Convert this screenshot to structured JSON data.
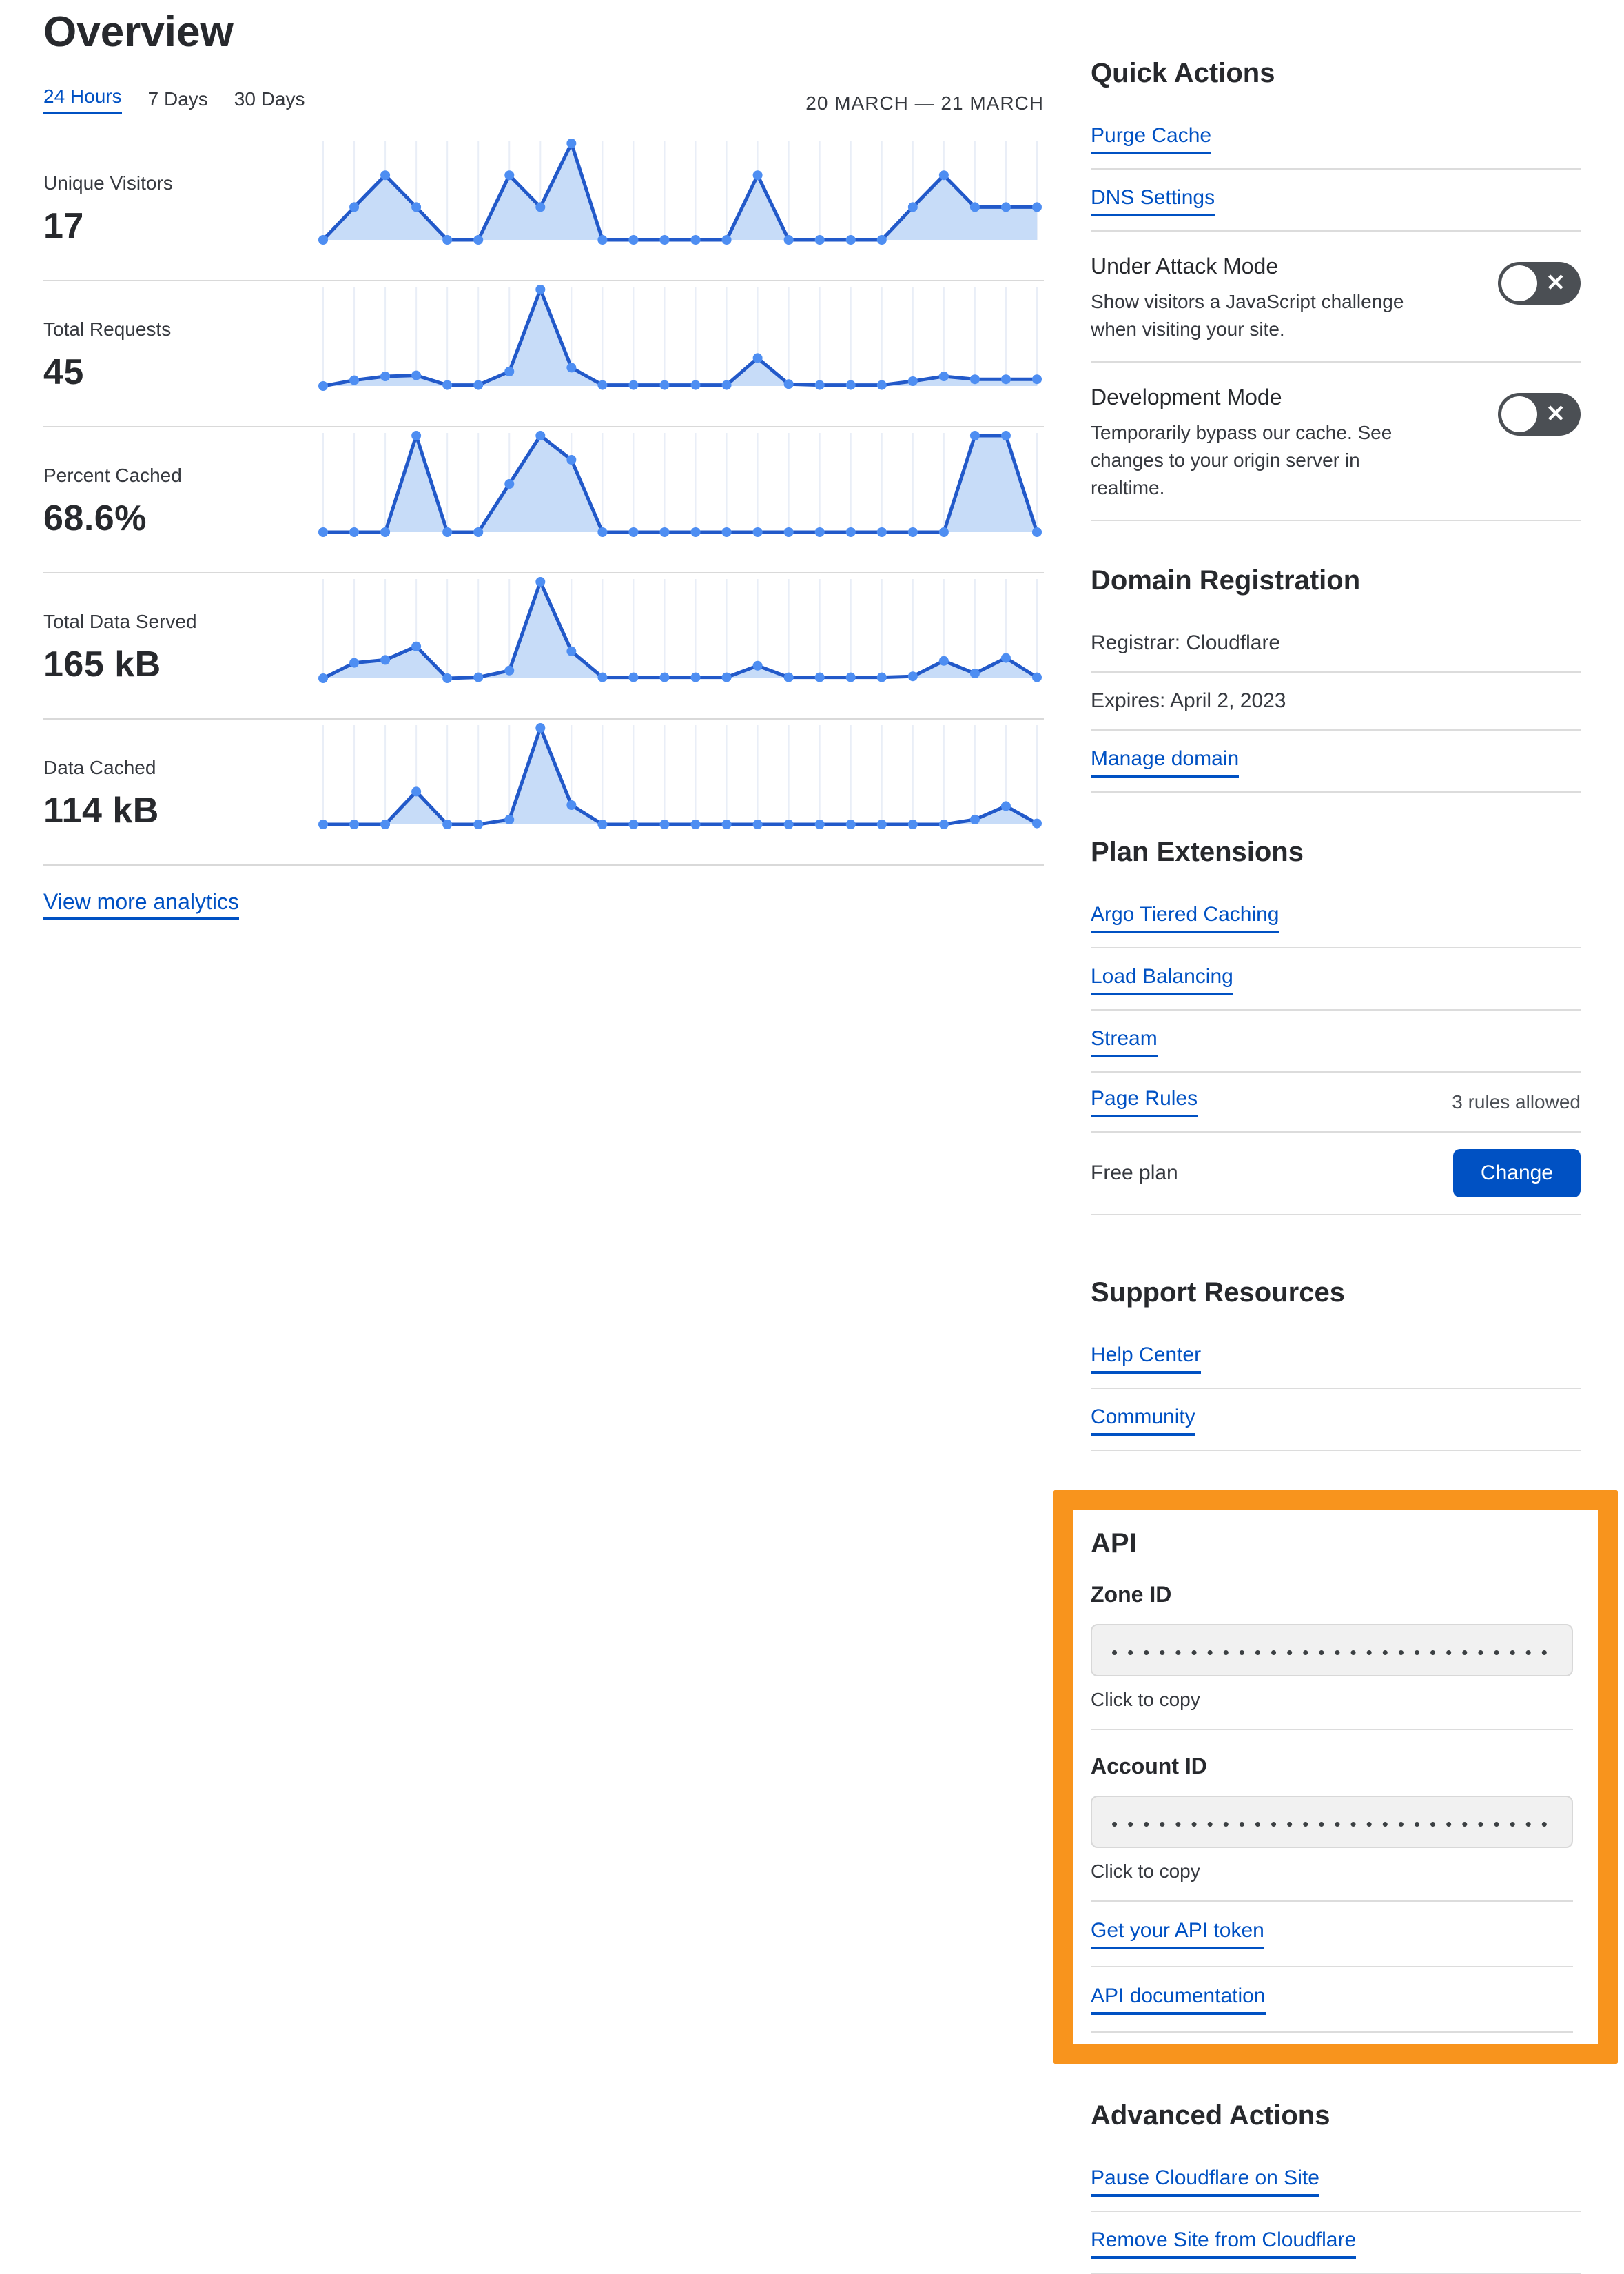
{
  "colors": {
    "link_blue": "#0051c3",
    "button_blue": "#0051c3",
    "accent_orange": "#f8941d",
    "chart_line": "#2259c9",
    "chart_dot": "#4e8ef2",
    "chart_fill": "#c7dcf8",
    "chart_grid": "#e9eef7",
    "toggle_bg": "#4b4f54",
    "divider": "#d9d9d9"
  },
  "header": {
    "title": "Overview",
    "tabs": [
      {
        "label": "24 Hours",
        "active": true
      },
      {
        "label": "7 Days",
        "active": false
      },
      {
        "label": "30 Days",
        "active": false
      }
    ],
    "date_range": "20 MARCH — 21 MARCH"
  },
  "chart_data": [
    {
      "type": "area",
      "title": "Unique Visitors",
      "total": "17",
      "x_count": 24,
      "x_meaning": "points across the 24 Hours range (no tick labels shown)",
      "ylim": [
        0,
        10
      ],
      "yunit": "relative (no y-axis shown)",
      "grid": "vertical gridlines only",
      "legend": "none",
      "values": [
        0,
        3.4,
        6.7,
        3.4,
        0,
        0,
        6.7,
        3.4,
        10,
        0,
        0,
        0,
        0,
        0,
        6.7,
        0,
        0,
        0,
        0,
        3.4,
        6.7,
        3.4,
        3.4,
        3.4
      ]
    },
    {
      "type": "area",
      "title": "Total Requests",
      "total": "45",
      "x_count": 24,
      "x_meaning": "points across the 24 Hours range (no tick labels shown)",
      "ylim": [
        0,
        10
      ],
      "yunit": "relative (no y-axis shown)",
      "grid": "vertical gridlines only",
      "legend": "none",
      "values": [
        0,
        0.6,
        1,
        1.1,
        0.1,
        0.1,
        1.5,
        10,
        1.9,
        0.1,
        0.1,
        0.1,
        0.1,
        0.1,
        2.9,
        0.2,
        0.1,
        0.1,
        0.1,
        0.5,
        1,
        0.7,
        0.7,
        0.7
      ]
    },
    {
      "type": "area",
      "title": "Percent Cached",
      "total": "68.6%",
      "x_count": 24,
      "x_meaning": "points across the 24 Hours range (no tick labels shown)",
      "ylim": [
        0,
        10
      ],
      "yunit": "relative (no y-axis shown)",
      "grid": "vertical gridlines only",
      "legend": "none",
      "values": [
        0,
        0,
        0,
        10,
        0,
        0,
        5,
        10,
        7.5,
        0,
        0,
        0,
        0,
        0,
        0,
        0,
        0,
        0,
        0,
        0,
        0,
        10,
        10,
        0
      ]
    },
    {
      "type": "area",
      "title": "Total Data Served",
      "total": "165 kB",
      "x_count": 24,
      "x_meaning": "points across the 24 Hours range (no tick labels shown)",
      "ylim": [
        0,
        10
      ],
      "yunit": "relative (no y-axis shown)",
      "grid": "vertical gridlines only",
      "legend": "none",
      "values": [
        0,
        1.6,
        1.9,
        3.3,
        0,
        0.1,
        0.8,
        10,
        2.8,
        0.1,
        0.1,
        0.1,
        0.1,
        0.1,
        1.3,
        0.1,
        0.1,
        0.1,
        0.1,
        0.2,
        1.8,
        0.5,
        2.1,
        0.1
      ]
    },
    {
      "type": "area",
      "title": "Data Cached",
      "total": "114 kB",
      "x_count": 24,
      "x_meaning": "points across the 24 Hours range (no tick labels shown)",
      "ylim": [
        0,
        10
      ],
      "yunit": "relative (no y-axis shown)",
      "grid": "vertical gridlines only",
      "legend": "none",
      "values": [
        0,
        0,
        0,
        3.4,
        0,
        0,
        0.5,
        10,
        2,
        0,
        0,
        0,
        0,
        0,
        0,
        0,
        0,
        0,
        0,
        0,
        0,
        0.5,
        1.9,
        0.1
      ]
    }
  ],
  "analytics": {
    "view_more": "View more analytics"
  },
  "quick_actions": {
    "heading": "Quick Actions",
    "links": [
      "Purge Cache",
      "DNS Settings"
    ],
    "toggles": [
      {
        "title": "Under Attack Mode",
        "description": "Show visitors a JavaScript challenge when visiting your site.",
        "state": "off"
      },
      {
        "title": "Development Mode",
        "description": "Temporarily bypass our cache. See changes to your origin server in realtime.",
        "state": "off"
      }
    ]
  },
  "domain_registration": {
    "heading": "Domain Registration",
    "rows": [
      "Registrar: Cloudflare",
      "Expires: April 2, 2023"
    ],
    "link": "Manage domain"
  },
  "plan_extensions": {
    "heading": "Plan Extensions",
    "links": [
      "Argo Tiered Caching",
      "Load Balancing",
      "Stream",
      "Page Rules"
    ],
    "page_rules_note": "3 rules allowed",
    "plan_label": "Free plan",
    "change_button": "Change"
  },
  "support_resources": {
    "heading": "Support Resources",
    "links": [
      "Help Center",
      "Community"
    ]
  },
  "api": {
    "heading": "API",
    "zone_id_label": "Zone ID",
    "account_id_label": "Account ID",
    "masked_value": "••••••••••••••••••••••••••••",
    "click_to_copy": "Click to copy",
    "links": [
      "Get your API token",
      "API documentation"
    ]
  },
  "advanced_actions": {
    "heading": "Advanced Actions",
    "links": [
      "Pause Cloudflare on Site",
      "Remove Site from Cloudflare"
    ]
  }
}
